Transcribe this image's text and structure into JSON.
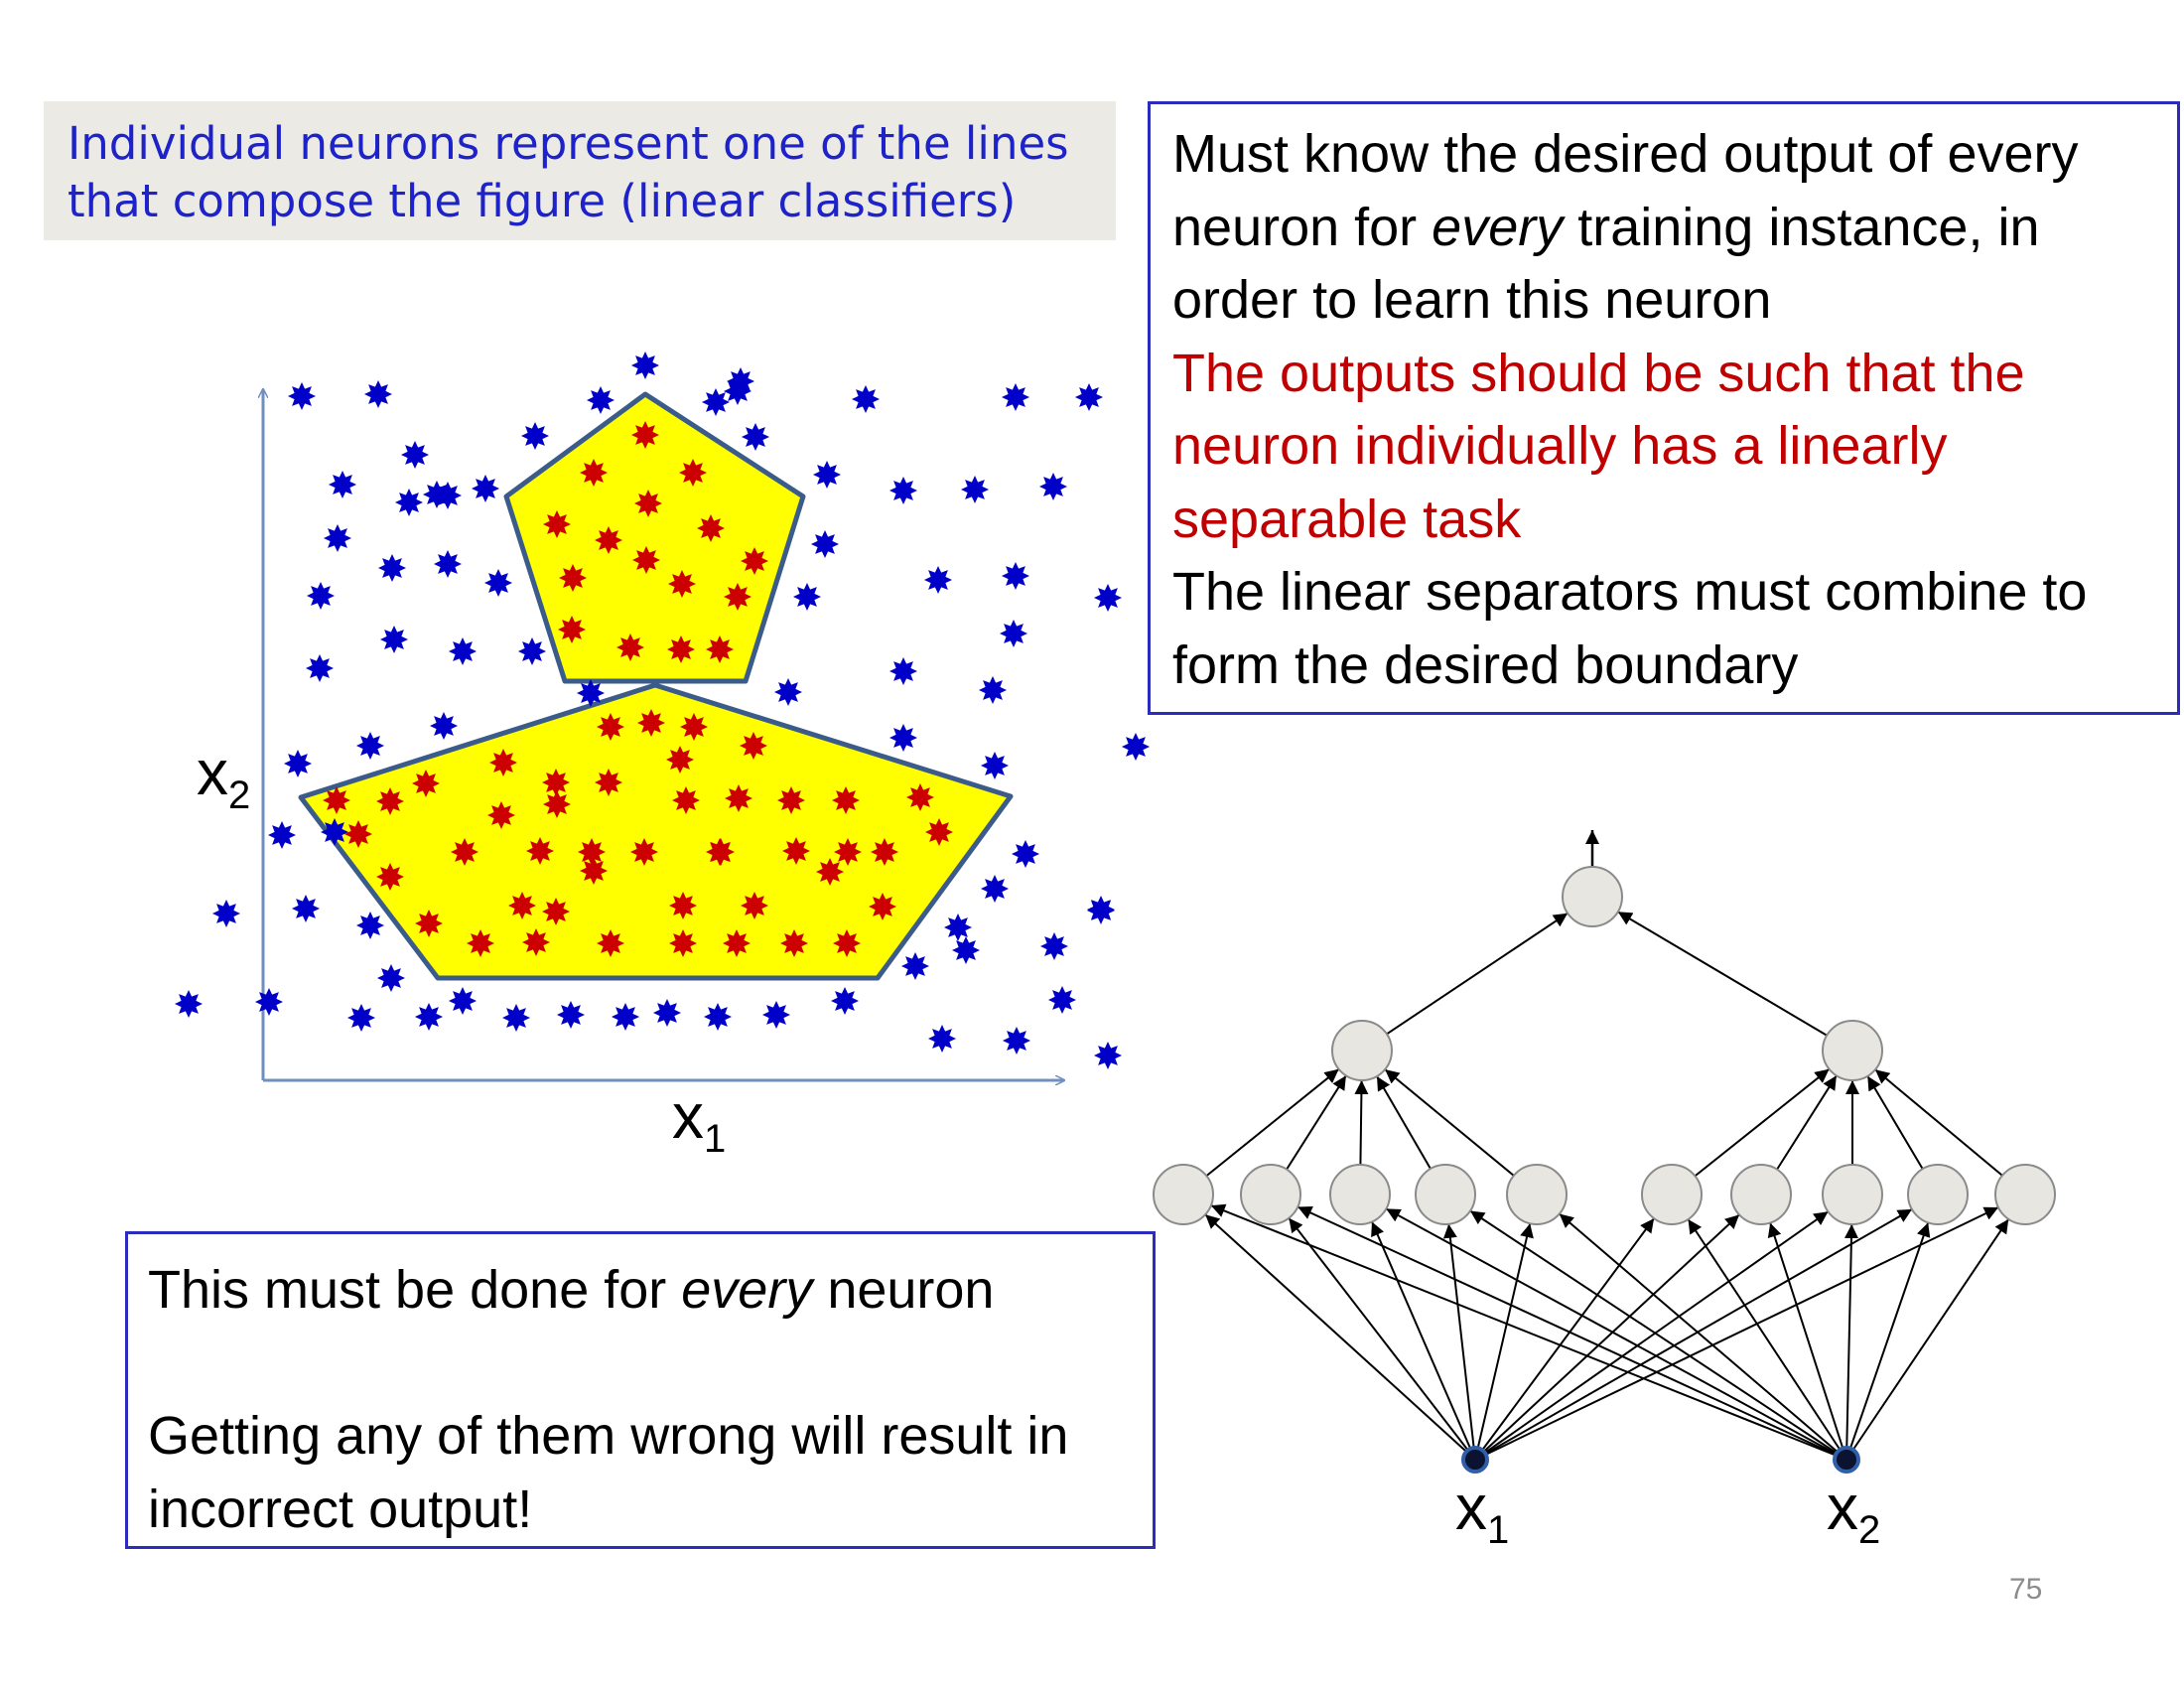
{
  "note": {
    "line1": "Individual neurons represent one of the lines",
    "line2": "that compose the figure (linear classifiers)"
  },
  "right_box": {
    "l1": "Must know the desired output of every",
    "l2a": "neuron for ",
    "l2_em": "every",
    "l2b": " training instance, in",
    "l3": "order to learn this neuron",
    "l4": "The outputs should be such that the",
    "l5": "neuron individually has a linearly",
    "l6": "separable task",
    "l7": "The linear separators must combine to",
    "l8": "form the desired boundary"
  },
  "bottom_box": {
    "l1a": "This must be done for ",
    "l1_em": "every",
    "l1b": " neuron",
    "l3": "Getting any of them wrong will result in",
    "l4": "incorrect output!"
  },
  "plot": {
    "x_label": "x",
    "x_sub": "1",
    "y_label": "x",
    "y_sub": "2"
  },
  "network": {
    "input1_label": "x",
    "input1_sub": "1",
    "input2_label": "x",
    "input2_sub": "2"
  },
  "slide_number": "75",
  "colors": {
    "shape_fill": "#ffff00",
    "shape_stroke": "#3b5c8a",
    "inside_star": "#cc0000",
    "outside_star": "#0000c8",
    "note_text": "#1d22c9",
    "box_border": "#2b2bbd",
    "highlight_text": "#c00000"
  }
}
